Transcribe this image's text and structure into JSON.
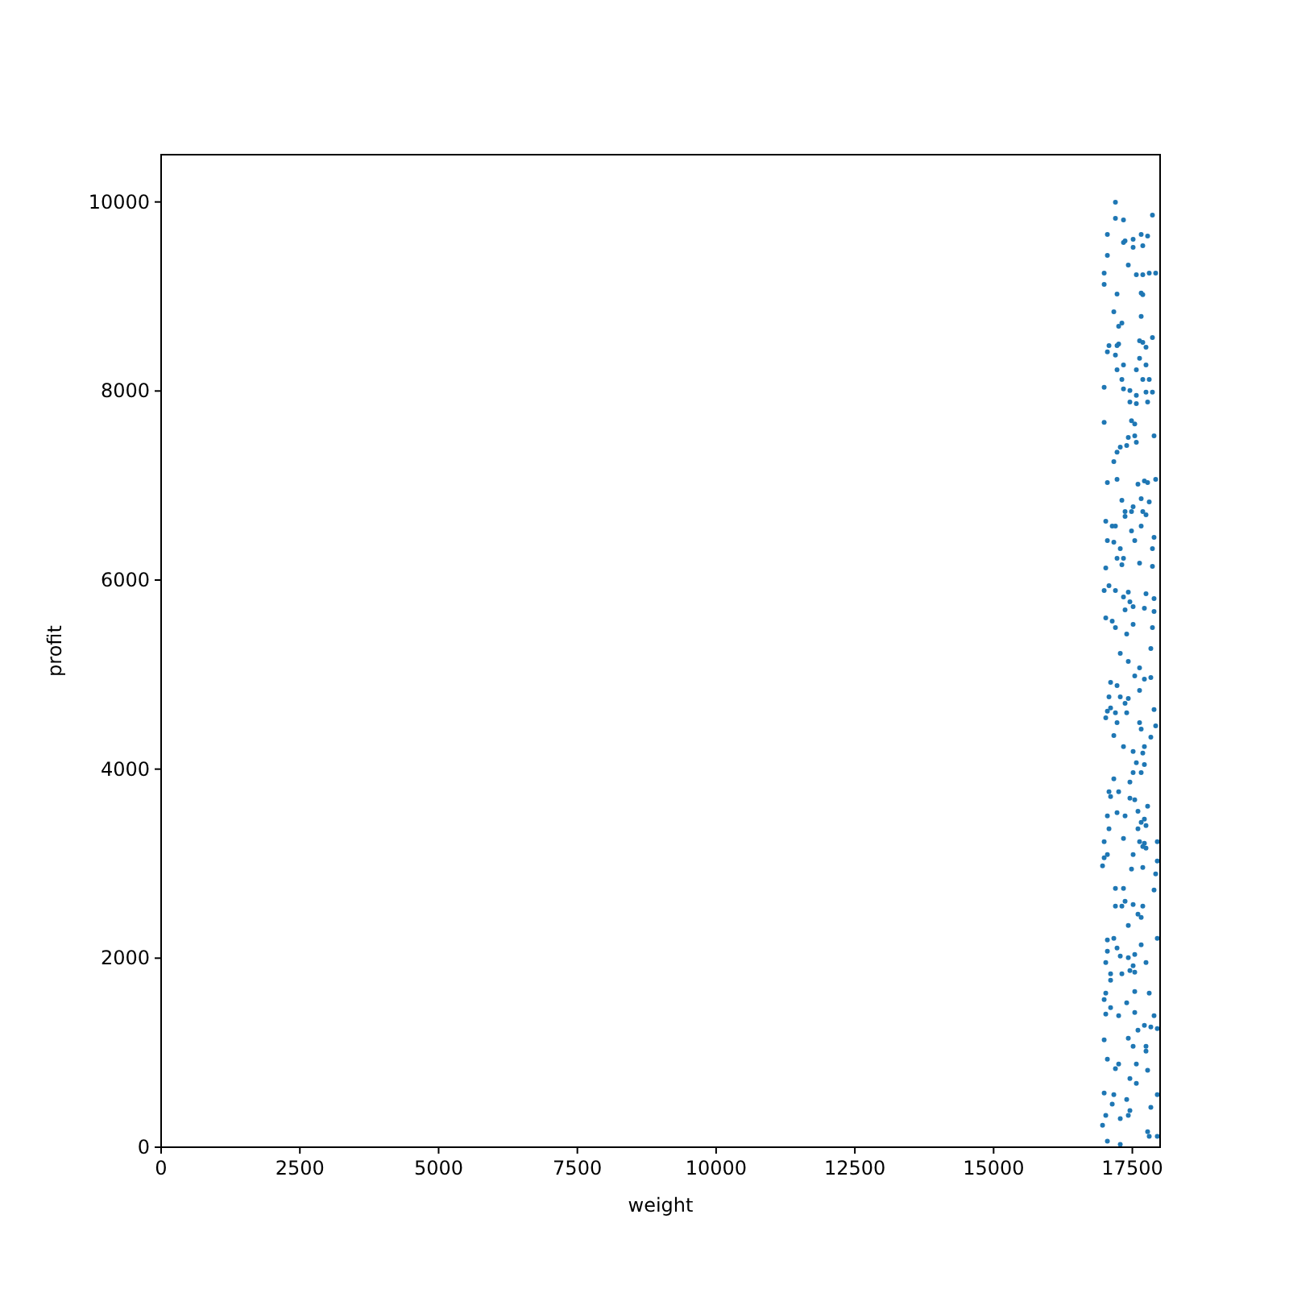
{
  "chart_data": {
    "type": "scatter",
    "xlabel": "weight",
    "ylabel": "profit",
    "xlim": [
      0,
      18000
    ],
    "ylim": [
      0,
      10500
    ],
    "xticks": [
      0,
      2500,
      5000,
      7500,
      10000,
      12500,
      15000,
      17500
    ],
    "yticks": [
      0,
      2000,
      4000,
      6000,
      8000,
      10000
    ],
    "grid": false,
    "marker": "circle",
    "series": [
      {
        "color": "#1f77b4",
        "x": [
          17195,
          17195,
          17340,
          17862,
          17050,
          17659,
          17775,
          17514,
          17369,
          17340,
          17688,
          17514,
          17050,
          17427,
          16992,
          17572,
          17688,
          17804,
          17920,
          16992,
          17224,
          17659,
          17688,
          17166,
          17659,
          17311,
          17253,
          17862,
          17630,
          17688,
          17746,
          17079,
          17253,
          17224,
          17050,
          17195,
          17630,
          17340,
          17746,
          17224,
          17572,
          17311,
          17688,
          17804,
          16992,
          17340,
          17456,
          17746,
          17862,
          17572,
          17456,
          17572,
          17775,
          16992,
          17485,
          17543,
          17891,
          17427,
          17543,
          17572,
          17398,
          17282,
          17224,
          17166,
          17050,
          17224,
          17601,
          17717,
          17775,
          17920,
          17311,
          17659,
          17804,
          17514,
          17369,
          17485,
          17688,
          17746,
          17369,
          17021,
          17137,
          17195,
          17659,
          17485,
          17891,
          17050,
          17166,
          17543,
          17282,
          17862,
          17224,
          17340,
          17311,
          17021,
          17630,
          17862,
          17079,
          16992,
          17195,
          17427,
          17746,
          17340,
          17456,
          17891,
          17514,
          17369,
          17717,
          17891,
          17021,
          17137,
          17195,
          17514,
          17862,
          17398,
          17833,
          17282,
          17427,
          17630,
          17543,
          17717,
          17833,
          17108,
          17224,
          17630,
          17079,
          17282,
          17427,
          17369,
          17108,
          17050,
          17195,
          17398,
          17021,
          17224,
          17891,
          17630,
          17659,
          17920,
          17166,
          17833,
          17340,
          17717,
          17514,
          17688,
          17572,
          17717,
          17514,
          17659,
          17166,
          17456,
          17079,
          17253,
          17108,
          17456,
          17543,
          17775,
          17224,
          17050,
          17369,
          17601,
          17717,
          17659,
          17746,
          17079,
          17601,
          17340,
          16992,
          17630,
          17717,
          17949,
          17688,
          17746,
          17050,
          16992,
          17514,
          17949,
          16963,
          17485,
          17688,
          17920,
          17195,
          17340,
          17891,
          17195,
          17311,
          17369,
          17514,
          17688,
          17601,
          17659,
          17427,
          17050,
          17166,
          17659,
          17949,
          17224,
          17050,
          17282,
          17427,
          17543,
          17021,
          17746,
          17514,
          17456,
          17108,
          17311,
          17543,
          17108,
          17543,
          17804,
          17021,
          16992,
          17398,
          17108,
          17021,
          17253,
          17543,
          17891,
          17717,
          17833,
          17949,
          17601,
          17427,
          16992,
          17514,
          17746,
          17050,
          17253,
          17572,
          17746,
          17775,
          17195,
          17456,
          17572,
          16992,
          17166,
          17398,
          17949,
          17137,
          17456,
          17833,
          17021,
          17282,
          17427,
          16963,
          17775,
          17804,
          17949,
          17050,
          17282
        ],
        "values": [
          9997,
          9827,
          9810,
          9861,
          9657,
          9657,
          9640,
          9606,
          9588,
          9571,
          9537,
          9520,
          9435,
          9333,
          9248,
          9231,
          9231,
          9248,
          9248,
          9128,
          9026,
          9036,
          9019,
          8839,
          8788,
          8719,
          8685,
          8566,
          8532,
          8515,
          8464,
          8481,
          8498,
          8481,
          8413,
          8379,
          8345,
          8276,
          8276,
          8225,
          8225,
          8123,
          8123,
          8123,
          8038,
          8021,
          8004,
          7987,
          7987,
          7953,
          7884,
          7867,
          7884,
          7668,
          7685,
          7651,
          7525,
          7508,
          7525,
          7457,
          7423,
          7406,
          7354,
          7252,
          7031,
          7065,
          7014,
          7048,
          7031,
          7065,
          6843,
          6860,
          6826,
          6775,
          6724,
          6724,
          6724,
          6690,
          6673,
          6622,
          6571,
          6571,
          6571,
          6520,
          6451,
          6417,
          6400,
          6417,
          6332,
          6332,
          6230,
          6230,
          6162,
          6128,
          6179,
          6145,
          5940,
          5889,
          5889,
          5872,
          5855,
          5821,
          5770,
          5804,
          5719,
          5685,
          5702,
          5668,
          5600,
          5566,
          5498,
          5532,
          5498,
          5429,
          5276,
          5225,
          5140,
          5072,
          4986,
          4952,
          4969,
          4918,
          4884,
          4833,
          4765,
          4765,
          4748,
          4697,
          4646,
          4612,
          4595,
          4595,
          4543,
          4492,
          4629,
          4492,
          4424,
          4458,
          4356,
          4339,
          4237,
          4237,
          4186,
          4169,
          4067,
          4049,
          3964,
          3964,
          3896,
          3862,
          3760,
          3760,
          3709,
          3692,
          3675,
          3607,
          3538,
          3504,
          3504,
          3555,
          3470,
          3436,
          3402,
          3368,
          3368,
          3266,
          3232,
          3232,
          3215,
          3232,
          3181,
          3164,
          3095,
          3061,
          3095,
          3027,
          2976,
          2942,
          2959,
          2891,
          2738,
          2738,
          2721,
          2550,
          2550,
          2601,
          2567,
          2550,
          2465,
          2431,
          2346,
          2193,
          2210,
          2141,
          2210,
          2107,
          2073,
          2022,
          2005,
          2039,
          1954,
          1954,
          1920,
          1869,
          1835,
          1835,
          1852,
          1767,
          1647,
          1630,
          1630,
          1562,
          1528,
          1477,
          1409,
          1392,
          1426,
          1392,
          1290,
          1273,
          1256,
          1238,
          1153,
          1136,
          1068,
          1068,
          932,
          881,
          881,
          1017,
          813,
          830,
          727,
          676,
          574,
          557,
          506,
          557,
          455,
          387,
          421,
          336,
          302,
          336,
          233,
          165,
          114,
          114,
          63,
          29
        ]
      }
    ]
  }
}
